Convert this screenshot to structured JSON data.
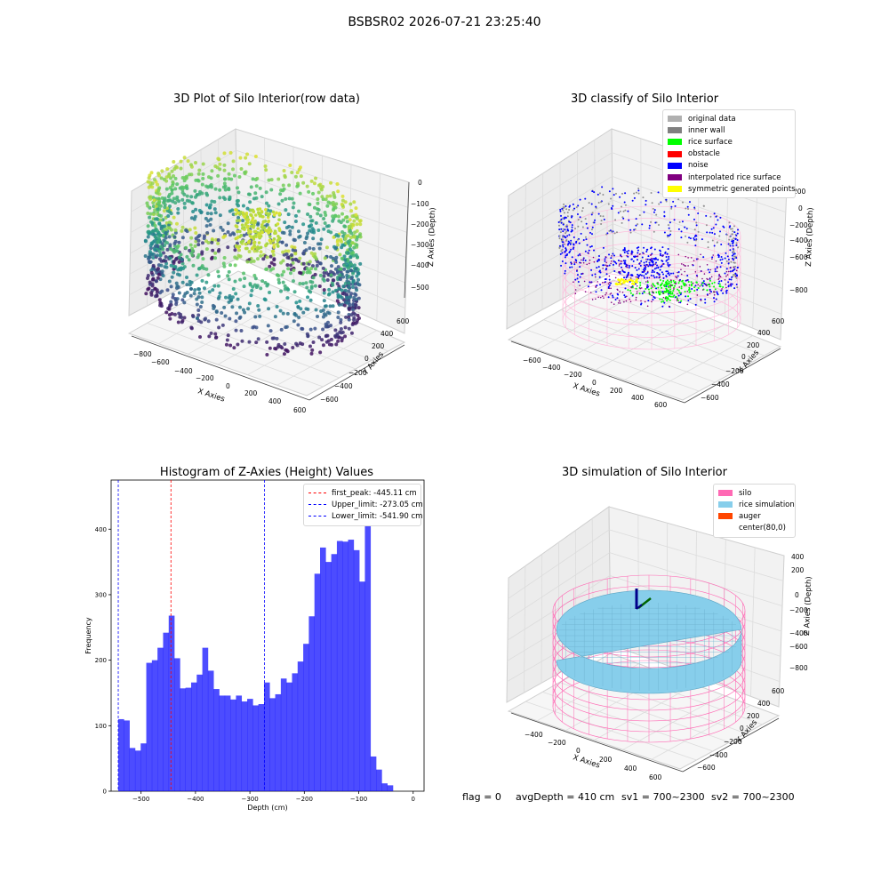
{
  "suptitle": "BSBSR02 2026-07-21 23:25:40",
  "plot1": {
    "title": "3D Plot of Silo Interior(row data)",
    "xlabel": "X Axies",
    "ylabel": "Y Axies",
    "zlabel": "Z Axies (Depth)",
    "xticks": [
      "−800",
      "−600",
      "−400",
      "−200",
      "0",
      "200",
      "400",
      "600"
    ],
    "yticks": [
      "−600",
      "−400",
      "−200",
      "0",
      "200",
      "400",
      "600"
    ],
    "zticks": [
      "0",
      "−100",
      "−200",
      "−300",
      "−400",
      "−500"
    ]
  },
  "plot2": {
    "title": "3D classify of Silo Interior",
    "xlabel": "X Axies",
    "ylabel": "Y Axies",
    "zlabel": "Z Axies (Depth)",
    "xticks": [
      "−600",
      "−400",
      "−200",
      "0",
      "200",
      "400",
      "600"
    ],
    "yticks": [
      "−600",
      "−400",
      "−200",
      "0",
      "200",
      "400",
      "600"
    ],
    "zticks": [
      "200",
      "0",
      "−200",
      "−400",
      "−600",
      "−800"
    ],
    "legend": [
      {
        "label": "original data",
        "color": "#b0b0b0"
      },
      {
        "label": "inner wall",
        "color": "#808080"
      },
      {
        "label": "rice surface",
        "color": "#00ff00"
      },
      {
        "label": "obstacle",
        "color": "#ff0000"
      },
      {
        "label": "noise",
        "color": "#0000ff"
      },
      {
        "label": "interpolated rice surface",
        "color": "#800080"
      },
      {
        "label": "symmetric generated points",
        "color": "#ffff00"
      }
    ]
  },
  "plot4": {
    "title": "3D simulation of Silo Interior",
    "xlabel": "X Axies",
    "ylabel": "Y Axies",
    "zlabel": "Z Axies (Depth)",
    "xticks": [
      "−400",
      "−200",
      "0",
      "200",
      "400",
      "600"
    ],
    "yticks": [
      "−600",
      "−400",
      "−200",
      "0",
      "200",
      "400",
      "600"
    ],
    "zticks": [
      "400",
      "200",
      "0",
      "−200",
      "−400",
      "−600",
      "−800"
    ],
    "legend": [
      {
        "label": "silo",
        "color": "#ff69b4"
      },
      {
        "label": "rice simulation",
        "color": "#87ceeb"
      },
      {
        "label": "auger",
        "color": "#ff4500"
      },
      {
        "label": "center(80,0)",
        "color": "#ffffff"
      }
    ]
  },
  "footer": {
    "flag": "flag = 0",
    "avg": "avgDepth = 410 cm",
    "sv1": "sv1 = 700~2300",
    "sv2": "sv2 = 700~2300"
  },
  "chart_data": {
    "type": "bar",
    "title": "Histogram of Z-Axies (Height) Values",
    "xlabel": "Depth (cm)",
    "ylabel": "Frequency",
    "xlim": [
      -555,
      20
    ],
    "ylim": [
      0,
      475
    ],
    "xticks": [
      -500,
      -400,
      -300,
      -200,
      -100,
      0
    ],
    "yticks": [
      0,
      100,
      200,
      300,
      400
    ],
    "bar_color": "#0000ff",
    "bin_start": -541.9,
    "bin_width": 10.3,
    "values": [
      110,
      108,
      66,
      62,
      73,
      196,
      200,
      219,
      242,
      268,
      203,
      157,
      158,
      166,
      178,
      219,
      184,
      156,
      146,
      146,
      140,
      146,
      137,
      141,
      131,
      133,
      166,
      142,
      148,
      172,
      166,
      180,
      198,
      225,
      267,
      332,
      372,
      350,
      362,
      382,
      381,
      384,
      368,
      320,
      455,
      53,
      33,
      12,
      9
    ],
    "lines": [
      {
        "label": "first_peak: -445.11 cm",
        "x": -445.11,
        "color": "#ff0000"
      },
      {
        "label": "Upper_limit: -273.05 cm",
        "x": -273.05,
        "color": "#0000ff"
      },
      {
        "label": "Lower_limit: -541.90 cm",
        "x": -541.9,
        "color": "#0000ff"
      }
    ]
  }
}
